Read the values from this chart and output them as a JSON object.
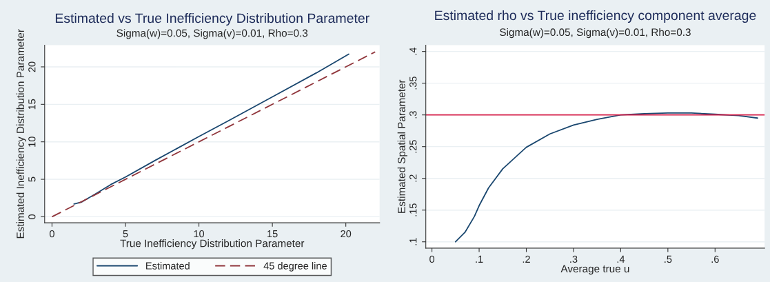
{
  "chart_data": [
    {
      "type": "line",
      "title": "Estimated vs True Inefficiency Distribution Parameter",
      "subtitle": "Sigma(w)=0.05, Sigma(v)=0.01, Rho=0.3",
      "xlabel": "True Inefficiency Distribution Parameter",
      "ylabel": "Estimated Inefficiency Distribution Parameter",
      "series": [
        {
          "name": "Estimated",
          "color": "#1a476f",
          "line_style": "solid",
          "x": [
            1.5,
            2,
            3,
            4,
            5,
            7,
            10,
            12,
            15,
            18,
            20.2
          ],
          "values": [
            1.7,
            1.95,
            3.1,
            4.3,
            5.3,
            7.5,
            10.7,
            12.8,
            16.0,
            19.2,
            21.7
          ]
        },
        {
          "name": "45 degree line",
          "color": "#90353b",
          "line_style": "dashed",
          "x": [
            0,
            22
          ],
          "values": [
            0,
            22
          ]
        }
      ],
      "xlim": [
        -0.5,
        22.3
      ],
      "ylim": [
        -0.8,
        22.9
      ],
      "xticks": [
        0,
        5,
        10,
        15,
        20
      ],
      "yticks": [
        0,
        5,
        10,
        15,
        20
      ],
      "grid": "y",
      "legend": "bottom"
    },
    {
      "type": "line",
      "title": "Estimated rho vs True inefficiency component average",
      "subtitle": "Sigma(w)=0.05, Sigma(v)=0.01, Rho=0.3",
      "xlabel": "Average true u",
      "ylabel": "Estimated Spatial Parameter",
      "series": [
        {
          "color": "#1a476f",
          "line_style": "solid",
          "x": [
            0.05,
            0.07,
            0.09,
            0.1,
            0.12,
            0.15,
            0.2,
            0.25,
            0.3,
            0.35,
            0.4,
            0.45,
            0.5,
            0.55,
            0.6,
            0.65,
            0.69
          ],
          "values": [
            0.1,
            0.115,
            0.14,
            0.157,
            0.185,
            0.215,
            0.249,
            0.27,
            0.284,
            0.293,
            0.3,
            0.302,
            0.303,
            0.303,
            0.301,
            0.299,
            0.295
          ]
        }
      ],
      "ref_lines": [
        {
          "axis": "y",
          "value": 0.3,
          "color": "#d6204a"
        }
      ],
      "xlim": [
        -0.013,
        0.705
      ],
      "ylim": [
        0.09,
        0.41
      ],
      "xticks": [
        0,
        {
          "value": 0.1,
          "label": ".1"
        },
        {
          "value": 0.2,
          "label": ".2"
        },
        {
          "value": 0.3,
          "label": ".3"
        },
        {
          "value": 0.4,
          "label": ".4"
        },
        {
          "value": 0.5,
          "label": ".5"
        },
        {
          "value": 0.6,
          "label": ".6"
        }
      ],
      "yticks": [
        {
          "value": 0.1,
          "label": ".1"
        },
        {
          "value": 0.15,
          "label": ".15"
        },
        {
          "value": 0.2,
          "label": ".2"
        },
        {
          "value": 0.25,
          "label": ".25"
        },
        {
          "value": 0.3,
          "label": ".3"
        },
        {
          "value": 0.35,
          "label": ".35"
        },
        {
          "value": 0.4,
          "label": ".4"
        }
      ],
      "grid": "y",
      "legend": false
    }
  ]
}
